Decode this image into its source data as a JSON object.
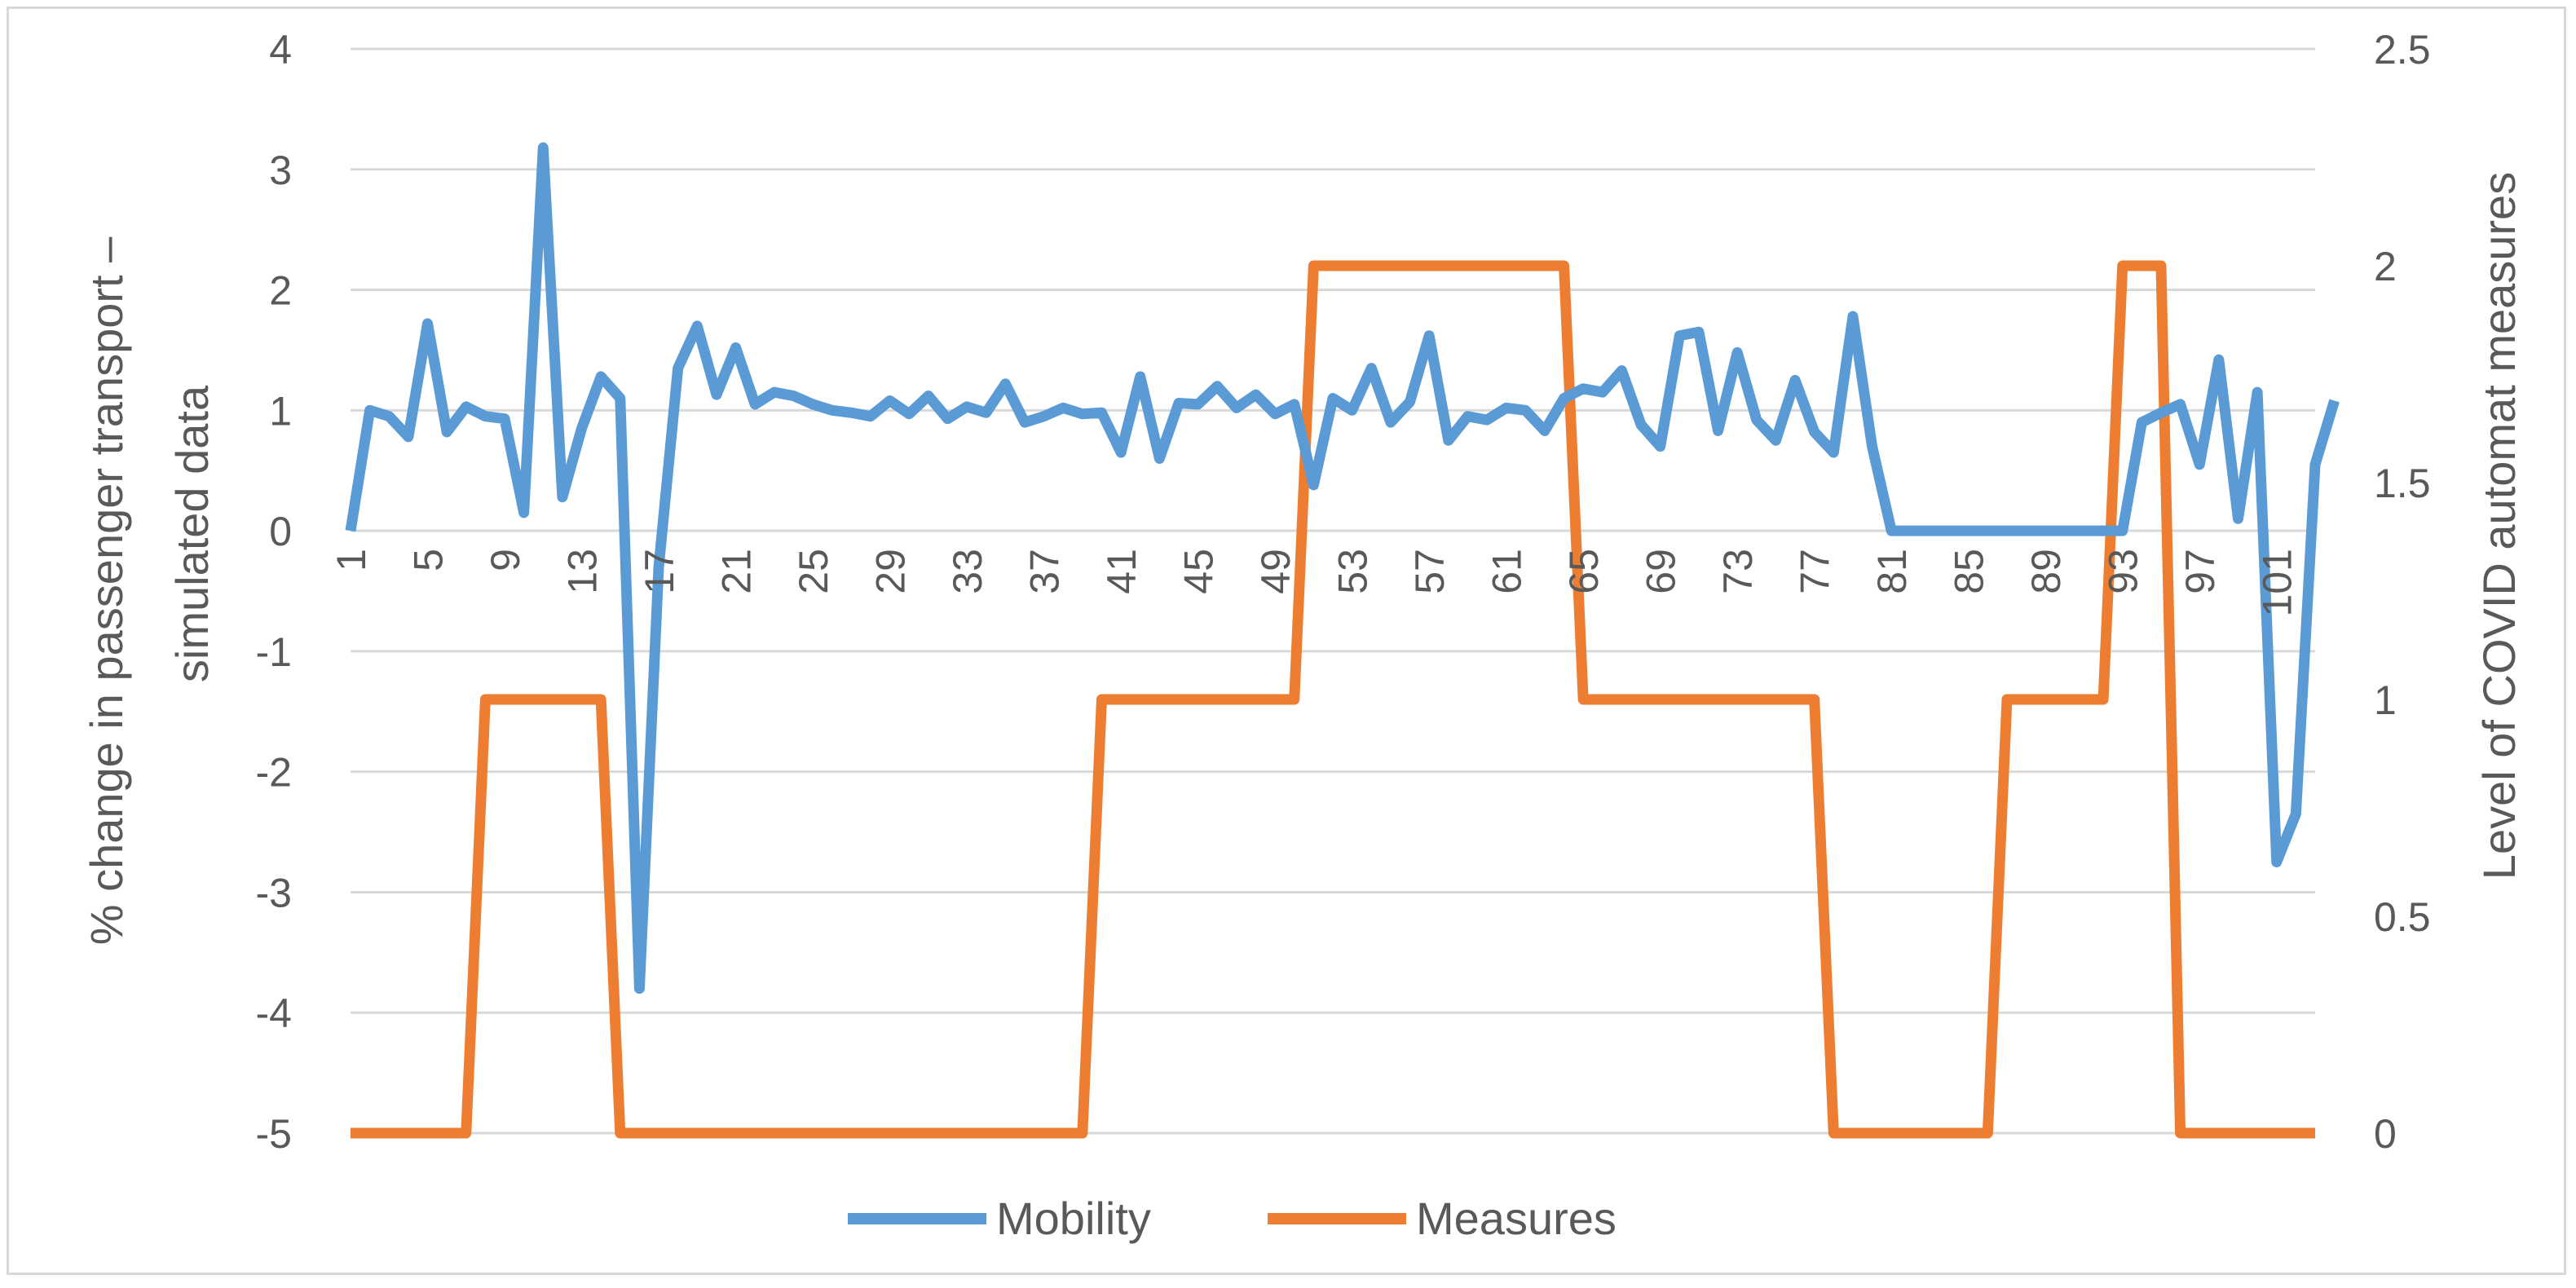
{
  "chart_data": {
    "type": "line",
    "x_axis": {
      "range": [
        1,
        103
      ],
      "tick_labels": [
        "1",
        "5",
        "9",
        "13",
        "17",
        "21",
        "25",
        "29",
        "33",
        "37",
        "41",
        "45",
        "49",
        "53",
        "57",
        "61",
        "65",
        "69",
        "73",
        "77",
        "81",
        "85",
        "89",
        "93",
        "97",
        "101"
      ]
    },
    "y_axis_left": {
      "label": "% change in passenger transport – simulated data",
      "range": [
        -5,
        4
      ],
      "tick_labels": [
        "4",
        "3",
        "2",
        "1",
        "0",
        "-1",
        "-2",
        "-3",
        "-4",
        "-5"
      ]
    },
    "y_axis_right": {
      "label": "Level of COVID automat measures",
      "range": [
        0,
        2.5
      ],
      "tick_labels": [
        "2.5",
        "2",
        "1.5",
        "1",
        "0.5",
        "0"
      ]
    },
    "grid": true,
    "legend_position": "bottom",
    "series": [
      {
        "name": "Mobility",
        "axis": "left",
        "color": "#5b9bd5",
        "values": [
          0,
          1.0,
          0.95,
          0.78,
          1.72,
          0.82,
          1.03,
          0.95,
          0.93,
          0.15,
          3.18,
          0.28,
          0.85,
          1.28,
          1.1,
          -3.8,
          -0.3,
          1.35,
          1.7,
          1.13,
          1.52,
          1.05,
          1.15,
          1.12,
          1.05,
          1.0,
          0.98,
          0.95,
          1.08,
          0.97,
          1.12,
          0.93,
          1.03,
          0.98,
          1.22,
          0.9,
          0.95,
          1.02,
          0.97,
          0.98,
          0.65,
          1.28,
          0.6,
          1.06,
          1.05,
          1.2,
          1.02,
          1.13,
          0.97,
          1.05,
          0.38,
          1.1,
          1.0,
          1.35,
          0.9,
          1.07,
          1.62,
          0.75,
          0.95,
          0.92,
          1.02,
          1.0,
          0.83,
          1.1,
          1.18,
          1.15,
          1.33,
          0.88,
          0.7,
          1.62,
          1.65,
          0.83,
          1.48,
          0.92,
          0.75,
          1.25,
          0.82,
          0.65,
          1.78,
          0.7,
          0,
          0,
          0,
          0,
          0,
          0,
          0,
          0,
          0,
          0,
          0,
          0,
          0,
          0.9,
          0.98,
          1.05,
          0.55,
          1.42,
          0.1,
          1.15,
          -2.75,
          -2.35,
          0.55,
          1.08
        ]
      },
      {
        "name": "Measures",
        "axis": "right",
        "color": "#ed7d31",
        "steps": [
          {
            "from": 1,
            "to": 7,
            "value": 0
          },
          {
            "from": 8,
            "to": 14,
            "value": 1
          },
          {
            "from": 15,
            "to": 39,
            "value": 0
          },
          {
            "from": 40,
            "to": 50,
            "value": 1
          },
          {
            "from": 51,
            "to": 64,
            "value": 2
          },
          {
            "from": 65,
            "to": 77,
            "value": 1
          },
          {
            "from": 78,
            "to": 86,
            "value": 0
          },
          {
            "from": 87,
            "to": 92,
            "value": 1
          },
          {
            "from": 93,
            "to": 95,
            "value": 2
          },
          {
            "from": 96,
            "to": 103,
            "value": 0
          }
        ]
      }
    ]
  }
}
